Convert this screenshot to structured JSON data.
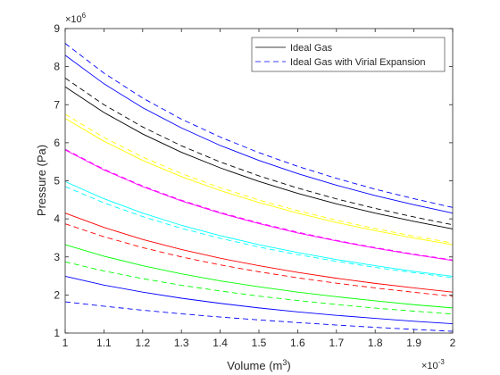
{
  "chart_data": {
    "type": "line",
    "xlabel": "Volume (m",
    "xlabel_sup": "3",
    "xlabel_end": ")",
    "ylabel": "Pressure (Pa)",
    "x_exponent": {
      "base": "×10",
      "power": "-3"
    },
    "y_exponent": {
      "base": "×10",
      "power": "6"
    },
    "xlim": [
      1,
      2
    ],
    "ylim": [
      1,
      9
    ],
    "x_tick_labels": [
      "1",
      "1.1",
      "1.2",
      "1.3",
      "1.4",
      "1.5",
      "1.6",
      "1.7",
      "1.8",
      "1.9",
      "2"
    ],
    "y_tick_labels": [
      "1",
      "2",
      "3",
      "4",
      "5",
      "6",
      "7",
      "8",
      "9"
    ],
    "x_ticks": [
      1,
      1.1,
      1.2,
      1.3,
      1.4,
      1.5,
      1.6,
      1.7,
      1.8,
      1.9,
      2
    ],
    "y_ticks": [
      1,
      2,
      3,
      4,
      5,
      6,
      7,
      8,
      9
    ],
    "grid": false,
    "legend_position": "top-right",
    "legend": [
      {
        "label": "Ideal Gas",
        "style": "solid"
      },
      {
        "label": "Ideal Gas with Virial Expansion",
        "style": "dashed"
      }
    ],
    "x": [
      1.0,
      1.1,
      1.2,
      1.3,
      1.4,
      1.5,
      1.6,
      1.7,
      1.8,
      1.9,
      2.0
    ],
    "series": [
      {
        "color": "#0000ff",
        "style": "solid",
        "values": [
          2.49,
          2.26,
          2.075,
          1.915,
          1.78,
          1.66,
          1.555,
          1.465,
          1.385,
          1.31,
          1.245
        ]
      },
      {
        "color": "#0000ff",
        "style": "dashed",
        "values": [
          1.82,
          1.705,
          1.6,
          1.505,
          1.42,
          1.345,
          1.275,
          1.21,
          1.15,
          1.095,
          1.045
        ]
      },
      {
        "color": "#00ff00",
        "style": "solid",
        "values": [
          3.32,
          3.02,
          2.77,
          2.555,
          2.37,
          2.215,
          2.075,
          1.955,
          1.845,
          1.745,
          1.66
        ]
      },
      {
        "color": "#00ff00",
        "style": "dashed",
        "values": [
          2.87,
          2.63,
          2.43,
          2.255,
          2.105,
          1.97,
          1.855,
          1.75,
          1.655,
          1.575,
          1.5
        ]
      },
      {
        "color": "#ff0000",
        "style": "solid",
        "values": [
          4.15,
          3.775,
          3.46,
          3.195,
          2.965,
          2.77,
          2.595,
          2.44,
          2.305,
          2.185,
          2.075
        ]
      },
      {
        "color": "#ff0000",
        "style": "dashed",
        "values": [
          3.87,
          3.53,
          3.245,
          3.0,
          2.79,
          2.61,
          2.45,
          2.31,
          2.185,
          2.07,
          1.965
        ]
      },
      {
        "color": "#00ffff",
        "style": "solid",
        "values": [
          4.98,
          4.53,
          4.15,
          3.83,
          3.56,
          3.32,
          3.115,
          2.93,
          2.77,
          2.62,
          2.49
        ]
      },
      {
        "color": "#00ffff",
        "style": "dashed",
        "values": [
          4.85,
          4.42,
          4.06,
          3.75,
          3.49,
          3.26,
          3.06,
          2.885,
          2.725,
          2.585,
          2.455
        ]
      },
      {
        "color": "#ff00ff",
        "style": "solid",
        "values": [
          5.81,
          5.285,
          4.845,
          4.47,
          4.15,
          3.875,
          3.63,
          3.42,
          3.23,
          3.06,
          2.905
        ]
      },
      {
        "color": "#ff00ff",
        "style": "dashed",
        "values": [
          5.83,
          5.305,
          4.865,
          4.49,
          4.17,
          3.895,
          3.65,
          3.435,
          3.245,
          3.075,
          2.92
        ]
      },
      {
        "color": "#ffff00",
        "style": "solid",
        "values": [
          6.64,
          6.04,
          5.535,
          5.11,
          4.745,
          4.43,
          4.15,
          3.905,
          3.69,
          3.495,
          3.32
        ]
      },
      {
        "color": "#ffff00",
        "style": "dashed",
        "values": [
          6.75,
          6.14,
          5.625,
          5.19,
          4.82,
          4.495,
          4.215,
          3.965,
          3.745,
          3.545,
          3.365
        ]
      },
      {
        "color": "#000000",
        "style": "solid",
        "values": [
          7.47,
          6.795,
          6.23,
          5.75,
          5.34,
          4.985,
          4.67,
          4.395,
          4.15,
          3.935,
          3.735
        ]
      },
      {
        "color": "#000000",
        "style": "dashed",
        "values": [
          7.7,
          7.0,
          6.415,
          5.92,
          5.495,
          5.13,
          4.81,
          4.525,
          4.275,
          4.05,
          3.845
        ]
      },
      {
        "color": "#0000ff",
        "style": "solid",
        "values": [
          8.3,
          7.55,
          6.92,
          6.39,
          5.93,
          5.535,
          5.19,
          4.885,
          4.61,
          4.37,
          4.15
        ]
      },
      {
        "color": "#0000ff",
        "style": "dashed",
        "values": [
          8.61,
          7.83,
          7.175,
          6.62,
          6.15,
          5.74,
          5.38,
          5.065,
          4.78,
          4.53,
          4.3
        ]
      }
    ]
  }
}
